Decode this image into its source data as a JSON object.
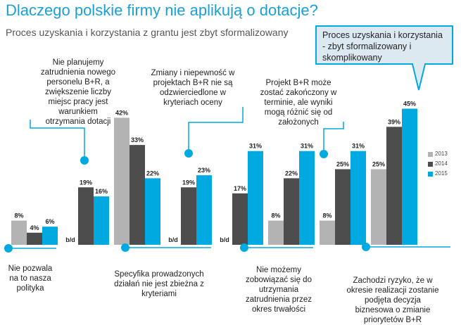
{
  "title": "Dlaczego polskie firmy nie aplikują o dotacje?",
  "subtitle": "Proces uzyskania i korzystania z grantu jest zbyt sformalizowany",
  "callout": "Proces uzyskania i korzystania - zbyt sformalizowany i skomplikowany",
  "annotations": {
    "a1": "Nie planujemy zatrudnienia nowego personelu B+R, a zwiększenie liczby miejsc pracy jest warunkiem otrzymania dotacji",
    "a2": "Zmiany i niepewność w projektach B+R nie są odzwierciedlone w kryteriach oceny",
    "a3": "Projekt B+R może zostać zakończony w terminie, ale wyniki mogą różnić się od założonych",
    "a4": "Nie pozwala na to nasza polityka",
    "a5": "Specyfika prowadzonych działań nie jest zbieżna z kryteriami",
    "a6": "Nie możemy zobowiązać się do utrzymania zatrudnienia przez okres trwałości",
    "a7": "Zachodzi ryzyko, że w okresie realizacji zostanie podjęta decyzja biznesowa o zmianie priorytetów B+R"
  },
  "colors": {
    "s2013": "#b3b3b3",
    "s2014": "#4d4d4d",
    "s2015": "#00a9e0",
    "accent": "#00a9e0"
  },
  "chart_data": {
    "type": "bar",
    "categories": [
      "Nie pozwala na to nasza polityka",
      "Nie planujemy zatrudnienia nowego personelu B+R",
      "Specyfika prowadzonych działań nie jest zbieżna z kryteriami",
      "Zmiany i niepewność w projektach B+R",
      "Nie możemy zobowiązać się do utrzymania zatrudnienia",
      "Projekt B+R może zostać zakończony w terminie",
      "Zachodzi ryzyko decyzji biznesowej",
      "Proces uzyskania i korzystania"
    ],
    "series": [
      {
        "name": "2013",
        "values": [
          8,
          null,
          42,
          null,
          null,
          8,
          8,
          25
        ]
      },
      {
        "name": "2014",
        "values": [
          4,
          19,
          33,
          19,
          17,
          22,
          25,
          39
        ]
      },
      {
        "name": "2015",
        "values": [
          6,
          16,
          22,
          23,
          31,
          31,
          31,
          45
        ]
      }
    ],
    "missing_label": "b/d",
    "value_suffix": "%"
  }
}
